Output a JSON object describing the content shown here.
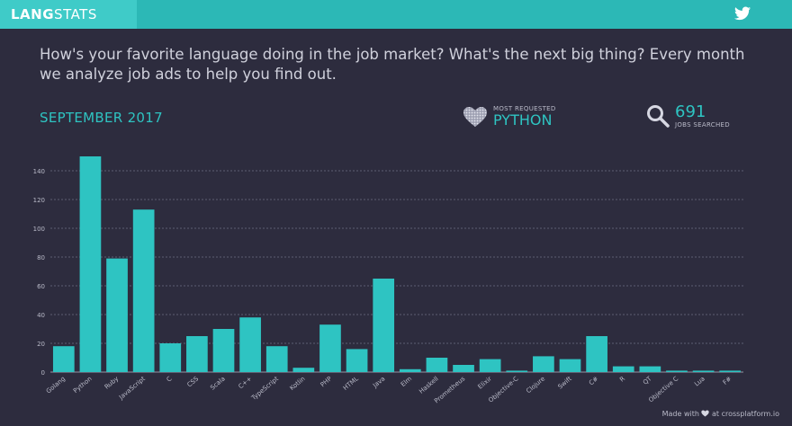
{
  "header": {
    "logo_bold": "LANG",
    "logo_light": "STATS",
    "twitter_icon": "twitter-icon"
  },
  "intro": "How's your favorite language doing in the job market? What's the next big thing? Every month we analyze job ads to help you find out.",
  "month": "SEPTEMBER 2017",
  "most_requested": {
    "caption": "MOST REQUESTED",
    "value": "PYTHON",
    "icon": "heart-icon"
  },
  "jobs_searched": {
    "value": "691",
    "caption": "JOBS SEARCHED",
    "icon": "search-icon"
  },
  "footer": {
    "prefix": "Made with",
    "suffix": "at crossplatform.io",
    "icon": "heart-icon"
  },
  "colors": {
    "bar": "#2ec4c2",
    "accent": "#2ec4c2",
    "background": "#2d2c3e",
    "topbar": "#2cb8b6"
  },
  "chart_data": {
    "type": "bar",
    "categories": [
      "Golang",
      "Python",
      "Ruby",
      "JavaScript",
      "C",
      "CSS",
      "Scala",
      "C++",
      "TypeScript",
      "Kotlin",
      "PHP",
      "HTML",
      "Java",
      "Elm",
      "Haskell",
      "Prometheus",
      "Elixir",
      "Objective-C",
      "Clojure",
      "Swift",
      "C#",
      "R",
      "QT",
      "Objective C",
      "Lua",
      "F#"
    ],
    "values": [
      18,
      150,
      79,
      113,
      20,
      25,
      30,
      38,
      18,
      3,
      33,
      16,
      65,
      2,
      10,
      5,
      9,
      1,
      11,
      9,
      25,
      4,
      4,
      1,
      1,
      1
    ],
    "yticks": [
      0,
      20,
      40,
      60,
      80,
      100,
      120,
      140
    ],
    "ylim": [
      0,
      150
    ],
    "grid": true
  }
}
